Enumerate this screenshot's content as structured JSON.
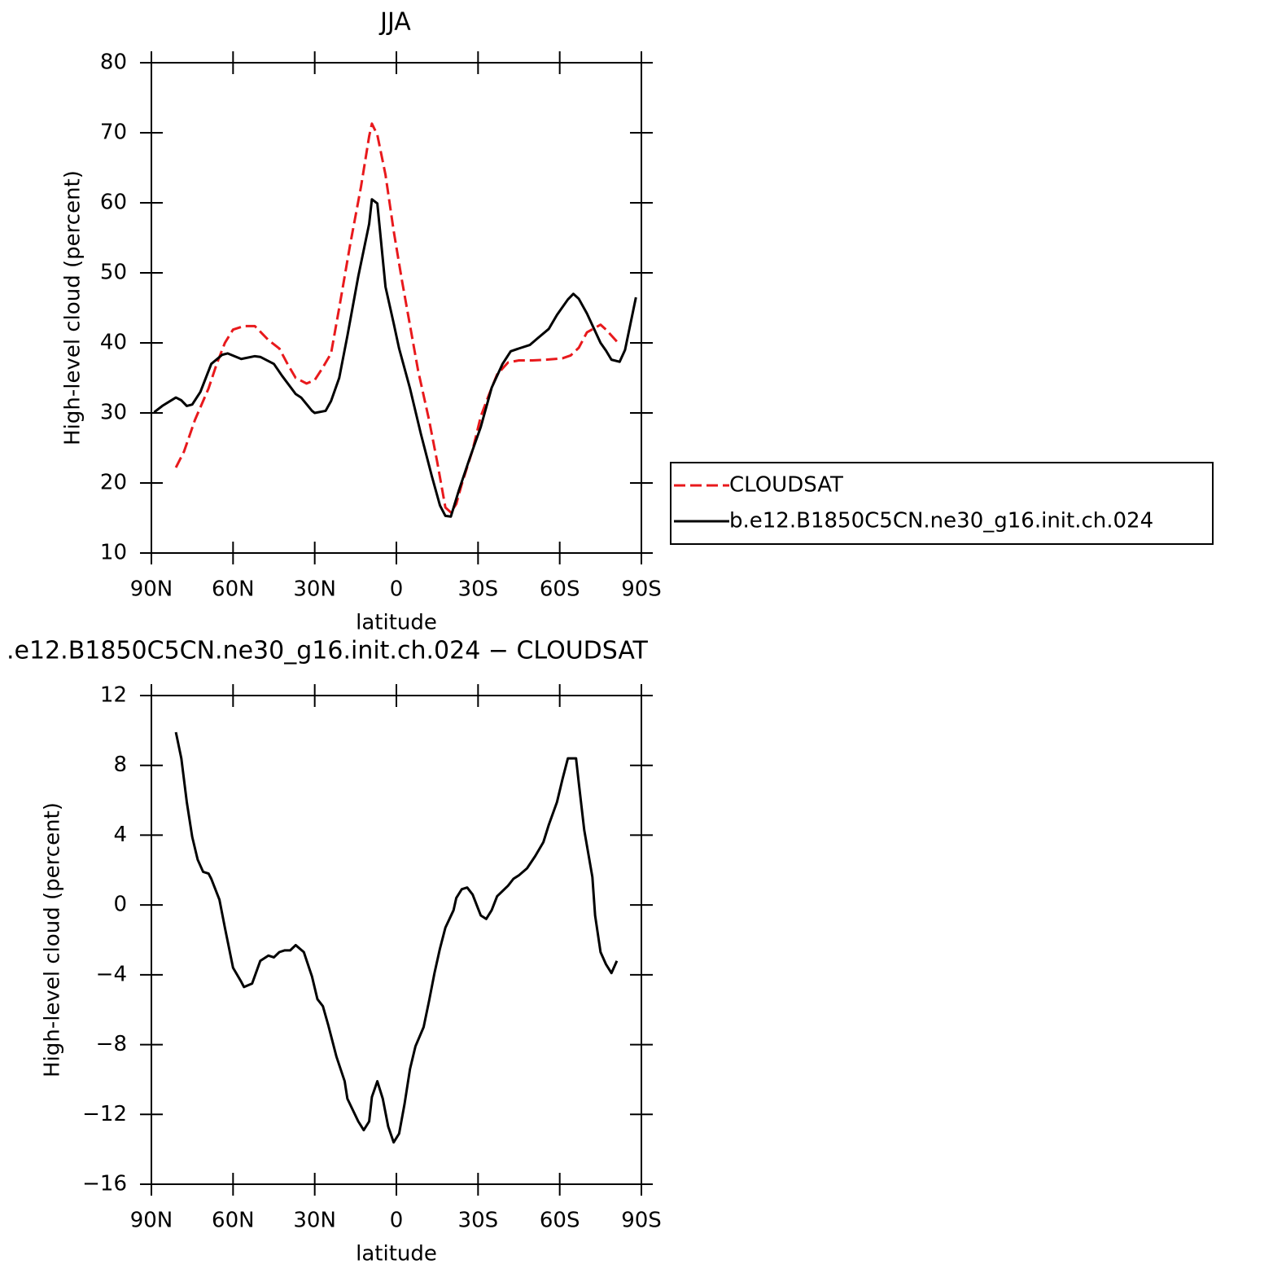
{
  "chart_data": [
    {
      "type": "line",
      "title": "JJA",
      "x_label": "latitude",
      "y_label": "High-level cloud (percent)",
      "xlim": [
        90,
        -90
      ],
      "xticks": [
        {
          "value": 90,
          "label": "90N"
        },
        {
          "value": 60,
          "label": "60N"
        },
        {
          "value": 30,
          "label": "30N"
        },
        0,
        {
          "value": -30,
          "label": "30S"
        },
        {
          "value": -60,
          "label": "60S"
        },
        {
          "value": -90,
          "label": "90S"
        }
      ],
      "ylim": [
        10,
        80
      ],
      "yticks": [
        10,
        20,
        30,
        40,
        50,
        60,
        70,
        80
      ],
      "series": [
        {
          "name": "CLOUDSAT",
          "color": "#e8191c",
          "line_style": "dashed",
          "x": [
            81,
            78,
            74,
            69,
            66,
            63,
            60,
            56,
            52,
            49,
            47,
            43,
            40,
            37,
            33,
            30,
            27,
            24,
            21,
            17,
            13,
            10,
            9,
            7,
            4,
            1,
            -2,
            -5,
            -8,
            -12,
            -15,
            -18,
            -20,
            -22,
            -24,
            -28,
            -31,
            -34,
            -37,
            -41,
            -45,
            -50,
            -55,
            -61,
            -64,
            -67,
            -70,
            -75,
            -77,
            -81
          ],
          "values": [
            22.2,
            24.5,
            29,
            33.5,
            37,
            40,
            41.9,
            42.4,
            42.4,
            41.2,
            40.4,
            39.2,
            37,
            35,
            34.2,
            34.7,
            36.5,
            38.5,
            45,
            54,
            62.3,
            69.5,
            71.3,
            69.7,
            64,
            56,
            49,
            42.5,
            36,
            29,
            23,
            16.5,
            15.8,
            17,
            19.8,
            24.7,
            29.5,
            32.6,
            35.5,
            37.2,
            37.5,
            37.5,
            37.6,
            37.8,
            38.2,
            39.3,
            41.5,
            42.6,
            41.9,
            40.2
          ]
        },
        {
          "name": "b.e12.B1850C5CN.ne30_g16.init.ch.024",
          "color": "#000000",
          "line_style": "solid",
          "x": [
            89,
            86,
            81,
            79,
            77,
            75,
            72,
            68,
            64,
            62,
            57,
            52,
            50,
            45,
            42,
            37,
            35,
            31,
            30,
            26,
            24,
            21,
            18,
            14,
            10,
            9,
            7,
            4,
            1,
            -1,
            -5,
            -9,
            -13,
            -16,
            -18,
            -20,
            -23,
            -27,
            -31,
            -35,
            -39,
            -42,
            -45,
            -49,
            -52,
            -56,
            -59,
            -63,
            -65,
            -67,
            -70,
            -75,
            -77,
            -79,
            -82,
            -84,
            -88
          ],
          "values": [
            30.1,
            31,
            32.2,
            31.8,
            31,
            31.2,
            33,
            37,
            38.3,
            38.5,
            37.7,
            38.1,
            38,
            37,
            35.3,
            32.7,
            32.2,
            30.3,
            30,
            30.3,
            31.7,
            35,
            41,
            49.5,
            57,
            60.5,
            59.9,
            48,
            42.8,
            39.2,
            33.5,
            27,
            21,
            16.8,
            15.3,
            15.2,
            19,
            23.6,
            28,
            33.6,
            37,
            38.8,
            39.2,
            39.7,
            40.7,
            42,
            44,
            46.2,
            47,
            46.3,
            44.2,
            40,
            38.9,
            37.6,
            37.3,
            39,
            46.5
          ]
        }
      ]
    },
    {
      "type": "line",
      "title": ".e12.B1850C5CN.ne30_g16.init.ch.024 − CLOUDSAT",
      "x_label": "latitude",
      "y_label": "High-level cloud (percent)",
      "xlim": [
        90,
        -90
      ],
      "xticks": [
        {
          "value": 90,
          "label": "90N"
        },
        {
          "value": 60,
          "label": "60N"
        },
        {
          "value": 30,
          "label": "30N"
        },
        0,
        {
          "value": -30,
          "label": "30S"
        },
        {
          "value": -60,
          "label": "60S"
        },
        {
          "value": -90,
          "label": "90S"
        }
      ],
      "ylim": [
        -16,
        12
      ],
      "yticks": [
        {
          "value": -16,
          "label": "−16"
        },
        {
          "value": -12,
          "label": "−12"
        },
        {
          "value": -8,
          "label": "−8"
        },
        {
          "value": -4,
          "label": "−4"
        },
        0,
        4,
        8,
        12
      ],
      "series": [
        {
          "color": "#000000",
          "line_style": "solid",
          "x": [
            81,
            79,
            77,
            75,
            73,
            71,
            69,
            68,
            65,
            63,
            60,
            57,
            56,
            53,
            50,
            47,
            45,
            43,
            41,
            39,
            37,
            34,
            31,
            29,
            27,
            25,
            22,
            19,
            18,
            14,
            12,
            10,
            9,
            7,
            5,
            3,
            1,
            -1,
            -3,
            -5,
            -7,
            -10,
            -12,
            -14,
            -16,
            -18,
            -21,
            -22,
            -24,
            -26,
            -28,
            -30,
            -31,
            -33,
            -35,
            -37,
            -39,
            -41,
            -43,
            -45,
            -48,
            -51,
            -54,
            -56,
            -59,
            -61,
            -63,
            -66,
            -67,
            -69,
            -72,
            -73,
            -75,
            -77,
            -79,
            -81
          ],
          "values": [
            9.9,
            8.4,
            5.9,
            3.9,
            2.6,
            1.9,
            1.8,
            1.5,
            0.3,
            -1.3,
            -3.6,
            -4.4,
            -4.7,
            -4.5,
            -3.2,
            -2.9,
            -3.0,
            -2.7,
            -2.6,
            -2.6,
            -2.3,
            -2.7,
            -4.1,
            -5.4,
            -5.8,
            -6.9,
            -8.7,
            -10.1,
            -11.1,
            -12.4,
            -12.9,
            -12.4,
            -11,
            -10.1,
            -11.1,
            -12.7,
            -13.6,
            -13.1,
            -11.4,
            -9.4,
            -8.1,
            -7,
            -5.5,
            -3.9,
            -2.5,
            -1.3,
            -0.3,
            0.4,
            0.9,
            1.0,
            0.6,
            -0.2,
            -0.6,
            -0.8,
            -0.3,
            0.5,
            0.8,
            1.1,
            1.5,
            1.7,
            2.1,
            2.8,
            3.6,
            4.6,
            5.9,
            7.2,
            8.4,
            8.4,
            7.0,
            4.3,
            1.6,
            -0.6,
            -2.7,
            -3.4,
            -3.9,
            -3.2
          ]
        }
      ]
    }
  ]
}
